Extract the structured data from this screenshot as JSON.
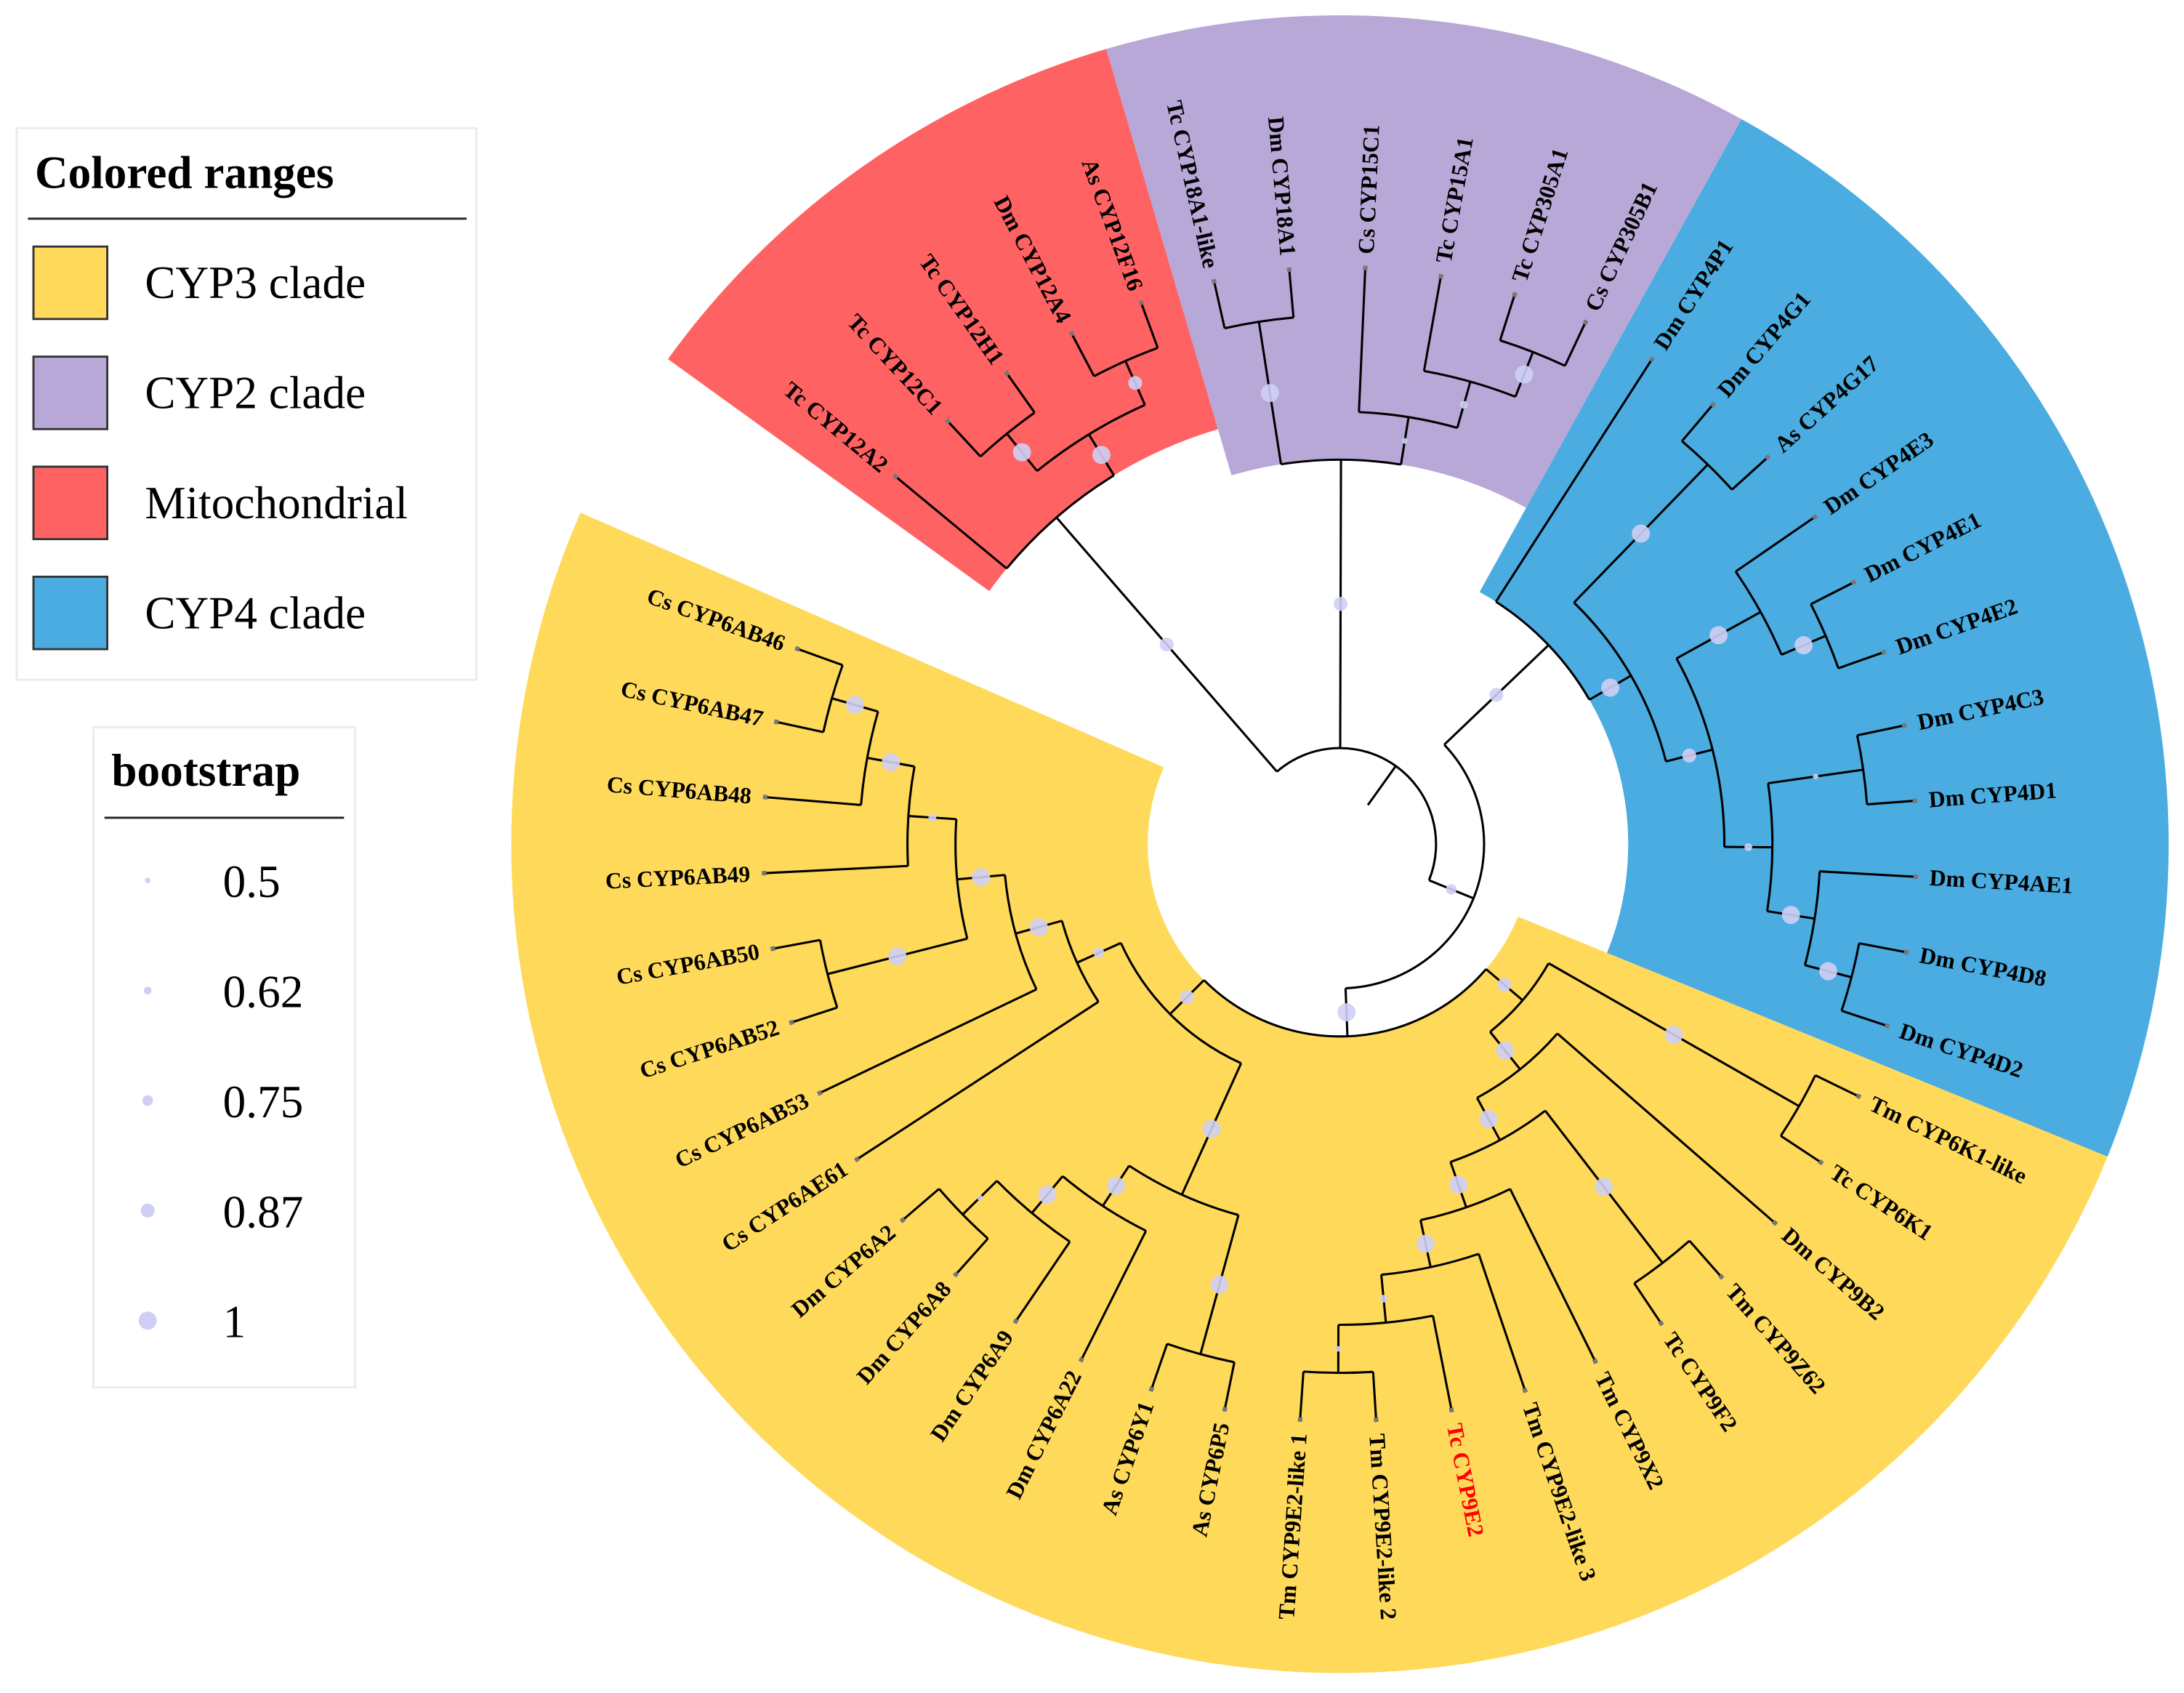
{
  "legend": {
    "colored_ranges": {
      "title": "Colored ranges",
      "items": [
        {
          "label": "CYP3 clade",
          "color": "#FFD95A"
        },
        {
          "label": "CYP2 clade",
          "color": "#B8A8D8"
        },
        {
          "label": "Mitochondrial",
          "color": "#FF6262"
        },
        {
          "label": "CYP4 clade",
          "color": "#4AACE0"
        }
      ]
    },
    "bootstrap": {
      "title": "bootstrap",
      "items": [
        {
          "label": "0.5",
          "value": 0.5
        },
        {
          "label": "0.62",
          "value": 0.62
        },
        {
          "label": "0.75",
          "value": 0.75
        },
        {
          "label": "0.87",
          "value": 0.87
        },
        {
          "label": "1",
          "value": 1
        }
      ],
      "dot_color": "#CFCFF5"
    }
  },
  "highlight_color": "#FF0000",
  "tree": {
    "children": [
      {
        "range": "Mitochondrial",
        "bootstrap": 0.87,
        "children": [
          {
            "name": "Tc CYP12A2"
          },
          {
            "bootstrap": 1,
            "children": [
              {
                "bootstrap": 1,
                "children": [
                  {
                    "name": "Tc CYP12C1"
                  },
                  {
                    "name": "Tc CYP12H1"
                  }
                ]
              },
              {
                "bootstrap": 0.87,
                "children": [
                  {
                    "name": "Dm CYP12A4"
                  },
                  {
                    "name": "As CYP12F16"
                  }
                ]
              }
            ]
          }
        ]
      },
      {
        "range": "CYP2 clade",
        "bootstrap": 0.87,
        "children": [
          {
            "bootstrap": 1,
            "children": [
              {
                "name": "Tc CYP18A1-like"
              },
              {
                "name": "Dm CYP18A1"
              }
            ]
          },
          {
            "bootstrap": 0.5,
            "children": [
              {
                "name": "Cs CYP15C1"
              },
              {
                "bootstrap": 0.62,
                "children": [
                  {
                    "name": "Tc CYP15A1"
                  },
                  {
                    "bootstrap": 1,
                    "children": [
                      {
                        "name": "Tc CYP305A1"
                      },
                      {
                        "name": "Cs CYP305B1"
                      }
                    ]
                  }
                ]
              }
            ]
          }
        ]
      },
      {
        "bootstrap": 0.75,
        "children": [
          {
            "range": "CYP4 clade",
            "bootstrap": 0.87,
            "children": [
              {
                "name": "Dm CYP4P1"
              },
              {
                "bootstrap": 1,
                "children": [
                  {
                    "bootstrap": 1,
                    "children": [
                      {
                        "name": "Dm CYP4G1"
                      },
                      {
                        "name": "As CYP4G17"
                      }
                    ]
                  },
                  {
                    "bootstrap": 0.87,
                    "children": [
                      {
                        "bootstrap": 1,
                        "children": [
                          {
                            "name": "Dm CYP4E3"
                          },
                          {
                            "bootstrap": 1,
                            "children": [
                              {
                                "name": "Dm CYP4E1"
                              },
                              {
                                "name": "Dm CYP4E2"
                              }
                            ]
                          }
                        ]
                      },
                      {
                        "bootstrap": 0.62,
                        "children": [
                          {
                            "bootstrap": 0.5,
                            "children": [
                              {
                                "name": "Dm CYP4C3"
                              },
                              {
                                "name": "Dm CYP4D1"
                              }
                            ]
                          },
                          {
                            "bootstrap": 1,
                            "children": [
                              {
                                "name": "Dm CYP4AE1"
                              },
                              {
                                "bootstrap": 1,
                                "children": [
                                  {
                                    "name": "Dm CYP4D8"
                                  },
                                  {
                                    "name": "Dm CYP4D2"
                                  }
                                ]
                              }
                            ]
                          }
                        ]
                      }
                    ]
                  }
                ]
              }
            ]
          },
          {
            "range": "CYP3 clade",
            "bootstrap": 1,
            "children": [
              {
                "bootstrap": 0.87,
                "children": [
                  {
                    "bootstrap": 1,
                    "children": [
                      {
                        "name": "Tm CYP6K1-like"
                      },
                      {
                        "name": "Tc CYP6K1"
                      }
                    ]
                  },
                  {
                    "bootstrap": 1,
                    "children": [
                      {
                        "name": "Dm CYP9B2"
                      },
                      {
                        "bootstrap": 1,
                        "children": [
                          {
                            "bootstrap": 1,
                            "children": [
                              {
                                "name": "Tm CYP9Z62"
                              },
                              {
                                "name": "Tc CYP9F2"
                              }
                            ]
                          },
                          {
                            "bootstrap": 1,
                            "children": [
                              {
                                "name": "Tm CYP9X2"
                              },
                              {
                                "bootstrap": 1,
                                "children": [
                                  {
                                    "name": "Tm CYP9E2-like 3"
                                  },
                                  {
                                    "bootstrap": 0.62,
                                    "children": [
                                      {
                                        "name": "Tc CYP9E2",
                                        "highlight": true
                                      },
                                      {
                                        "bootstrap": 0.5,
                                        "children": [
                                          {
                                            "name": "Tm CYP9E2-like 2"
                                          },
                                          {
                                            "name": "Tm CYP9E2-like 1"
                                          }
                                        ]
                                      }
                                    ]
                                  }
                                ]
                              }
                            ]
                          }
                        ]
                      }
                    ]
                  }
                ]
              },
              {
                "bootstrap": 0.87,
                "children": [
                  {
                    "bootstrap": 1,
                    "children": [
                      {
                        "bootstrap": 1,
                        "children": [
                          {
                            "name": "As CYP6P5"
                          },
                          {
                            "name": "As CYP6Y1"
                          }
                        ]
                      },
                      {
                        "bootstrap": 1,
                        "children": [
                          {
                            "name": "Dm CYP6A22"
                          },
                          {
                            "bootstrap": 1,
                            "children": [
                              {
                                "name": "Dm CYP6A9"
                              },
                              {
                                "bootstrap": 0.5,
                                "children": [
                                  {
                                    "name": "Dm CYP6A8"
                                  },
                                  {
                                    "name": "Dm CYP6A2"
                                  }
                                ]
                              }
                            ]
                          }
                        ]
                      }
                    ]
                  },
                  {
                    "bootstrap": 0.75,
                    "children": [
                      {
                        "name": "Cs CYP6AE61"
                      },
                      {
                        "bootstrap": 1,
                        "children": [
                          {
                            "name": "Cs CYP6AB53"
                          },
                          {
                            "bootstrap": 1,
                            "children": [
                              {
                                "bootstrap": 1,
                                "children": [
                                  {
                                    "name": "Cs CYP6AB52"
                                  },
                                  {
                                    "name": "Cs CYP6AB50"
                                  }
                                ]
                              },
                              {
                                "bootstrap": 0.62,
                                "children": [
                                  {
                                    "name": "Cs CYP6AB49"
                                  },
                                  {
                                    "bootstrap": 1,
                                    "children": [
                                      {
                                        "name": "Cs CYP6AB48"
                                      },
                                      {
                                        "bootstrap": 1,
                                        "children": [
                                          {
                                            "name": "Cs CYP6AB47"
                                          },
                                          {
                                            "name": "Cs CYP6AB46"
                                          }
                                        ]
                                      }
                                    ]
                                  }
                                ]
                              }
                            ]
                          }
                        ]
                      }
                    ]
                  }
                ]
              }
            ]
          }
        ]
      }
    ]
  }
}
